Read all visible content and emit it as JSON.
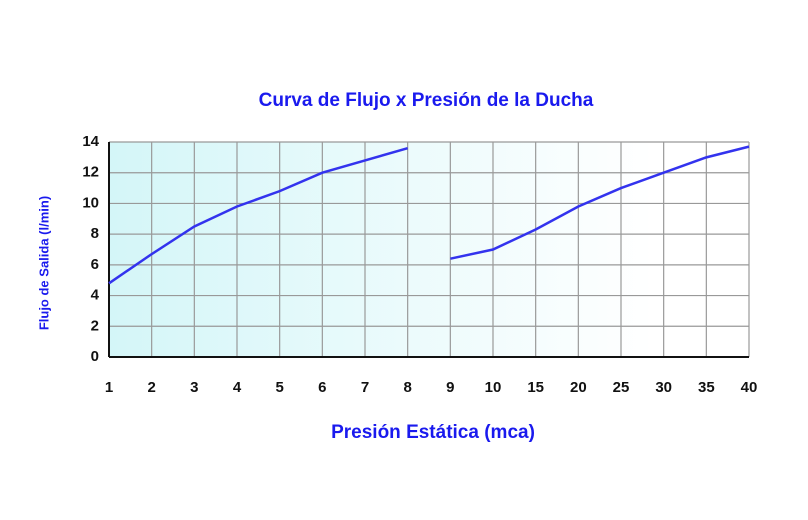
{
  "chart_data": {
    "type": "line",
    "title": "Curva de Flujo  x  Presión de la Ducha",
    "x_label": "Presión Estática (mca)",
    "y_label": "Flujo de Salida (l/min)",
    "categories": [
      "1",
      "2",
      "3",
      "4",
      "5",
      "6",
      "7",
      "8",
      "9",
      "10",
      "15",
      "20",
      "25",
      "30",
      "35",
      "40"
    ],
    "series": [
      {
        "color": "#3333ee",
        "values": [
          4.8,
          6.7,
          8.5,
          9.8,
          10.8,
          12.0,
          12.8,
          13.6,
          null,
          null,
          null,
          null,
          null,
          null,
          null,
          null
        ]
      },
      {
        "color": "#3333ee",
        "values": [
          null,
          null,
          null,
          null,
          null,
          null,
          null,
          null,
          6.4,
          7.0,
          8.3,
          9.8,
          11.0,
          12.0,
          13.0,
          13.7
        ]
      }
    ],
    "ylim": [
      0,
      14
    ],
    "yticks": [
      0,
      2,
      4,
      6,
      8,
      10,
      12,
      14
    ],
    "grid": true,
    "title_color": "#1a1aee"
  }
}
